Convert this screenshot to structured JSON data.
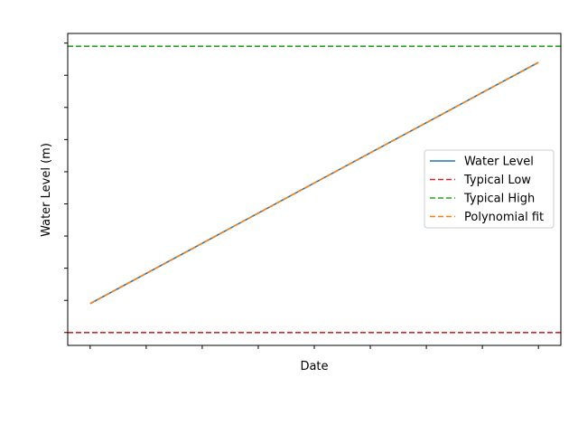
{
  "chart_data": {
    "type": "line",
    "title": "",
    "xlabel": "Date",
    "ylabel": "Water Level (m)",
    "xlim": [
      -0.4,
      8.4
    ],
    "ylim": [
      0.6,
      10.3
    ],
    "x_ticks": [
      0,
      1,
      2,
      3,
      4,
      5,
      6,
      7,
      8
    ],
    "y_ticks": [
      1,
      2,
      3,
      4,
      5,
      6,
      7,
      8,
      9,
      10
    ],
    "tick_labels_visible": false,
    "grid": false,
    "legend_position": "center-right",
    "series": [
      {
        "name": "Water Level",
        "style": "solid",
        "color": "#1f77b4",
        "x": [
          0,
          8
        ],
        "y": [
          1.9,
          9.4
        ]
      },
      {
        "name": "Typical Low",
        "style": "dashed",
        "color": "#d62728",
        "y_constant": 1.0
      },
      {
        "name": "Typical High",
        "style": "dashed",
        "color": "#2ca02c",
        "y_constant": 9.9
      },
      {
        "name": "Polynomial fit",
        "style": "dashed",
        "color": "#ff7f0e",
        "x": [
          0,
          8
        ],
        "y": [
          1.9,
          9.4
        ]
      }
    ]
  }
}
